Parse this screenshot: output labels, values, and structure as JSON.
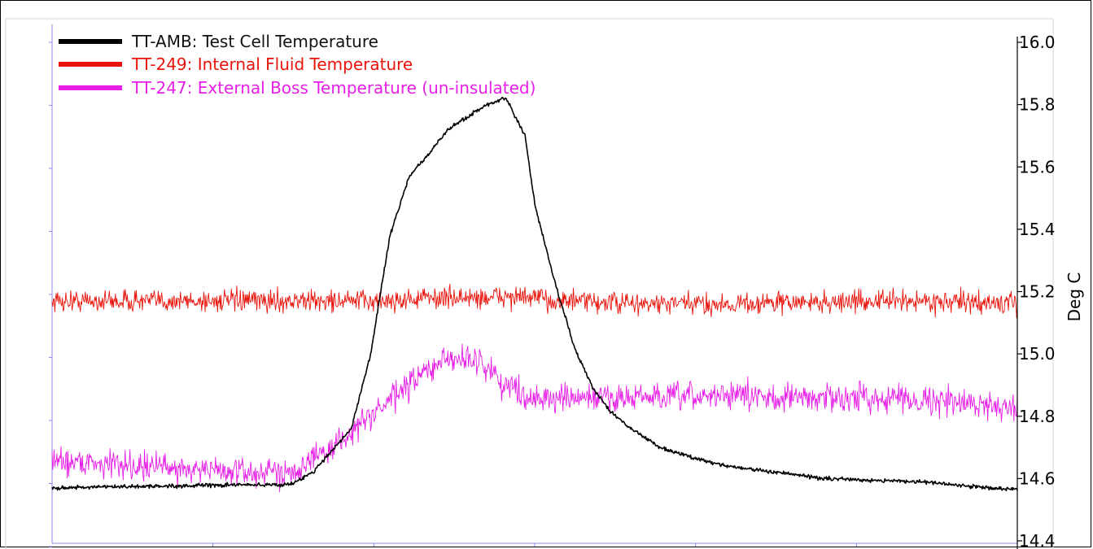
{
  "chart_data": {
    "type": "line",
    "title": "",
    "xlabel": "",
    "ylabel": "Deg C",
    "ylim": [
      14.4,
      16.0
    ],
    "yticks": [
      "16.0",
      "15.8",
      "15.6",
      "15.4",
      "15.2",
      "15.0",
      "14.8",
      "14.6",
      "14.4"
    ],
    "grid": false,
    "legend_position": "top-left",
    "x_normalized": [
      0,
      0.1,
      0.2,
      0.24,
      0.25,
      0.27,
      0.29,
      0.31,
      0.33,
      0.35,
      0.37,
      0.39,
      0.41,
      0.43,
      0.45,
      0.47,
      0.49,
      0.5,
      0.52,
      0.54,
      0.56,
      0.58,
      0.6,
      0.63,
      0.66,
      0.7,
      0.75,
      0.8,
      0.85,
      0.9,
      0.95,
      1.0
    ],
    "series": [
      {
        "name": "TT-AMB: Test Cell Temperature",
        "color": "#000000",
        "values": [
          14.57,
          14.575,
          14.58,
          14.58,
          14.585,
          14.62,
          14.69,
          14.76,
          15.0,
          15.38,
          15.57,
          15.64,
          15.72,
          15.76,
          15.8,
          15.82,
          15.7,
          15.48,
          15.24,
          15.03,
          14.89,
          14.81,
          14.76,
          14.7,
          14.67,
          14.64,
          14.62,
          14.6,
          14.595,
          14.59,
          14.575,
          14.565
        ]
      },
      {
        "name": "TT-249: Internal Fluid Temperature",
        "color": "#e8140c",
        "values": [
          15.17,
          15.17,
          15.17,
          15.17,
          15.17,
          15.17,
          15.17,
          15.17,
          15.17,
          15.17,
          15.175,
          15.18,
          15.18,
          15.18,
          15.18,
          15.185,
          15.18,
          15.18,
          15.17,
          15.17,
          15.165,
          15.165,
          15.16,
          15.16,
          15.16,
          15.16,
          15.165,
          15.165,
          15.17,
          15.17,
          15.165,
          15.16
        ]
      },
      {
        "name": "TT-247: External Boss Temperature (un-insulated)",
        "color": "#e61ee6",
        "values": [
          14.66,
          14.64,
          14.62,
          14.62,
          14.63,
          14.66,
          14.7,
          14.75,
          14.8,
          14.85,
          14.9,
          14.95,
          14.98,
          14.99,
          14.96,
          14.9,
          14.87,
          14.86,
          14.855,
          14.855,
          14.86,
          14.86,
          14.86,
          14.86,
          14.86,
          14.87,
          14.86,
          14.86,
          14.86,
          14.855,
          14.84,
          14.83
        ]
      }
    ]
  },
  "colors": {
    "left_axis": "#8a8aee"
  }
}
